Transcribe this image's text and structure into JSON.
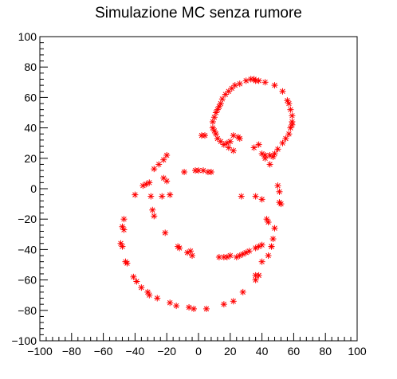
{
  "chart_data": {
    "type": "scatter",
    "title": "Simulazione MC senza rumore",
    "xlabel": "",
    "ylabel": "",
    "xlim": [
      -100,
      100
    ],
    "ylim": [
      -100,
      100
    ],
    "xticks": [
      -100,
      -80,
      -60,
      -40,
      -20,
      0,
      20,
      40,
      60,
      80,
      100
    ],
    "yticks": [
      -100,
      -80,
      -60,
      -40,
      -20,
      0,
      20,
      40,
      60,
      80,
      100
    ],
    "grid": false,
    "marker": "asterisk",
    "marker_color": "#ff0000",
    "series": [
      {
        "points": [
          [
            33,
            72
          ],
          [
            35,
            72
          ],
          [
            38,
            71
          ],
          [
            42,
            70
          ],
          [
            36,
            71
          ],
          [
            30,
            71
          ],
          [
            26,
            69
          ],
          [
            23,
            68
          ],
          [
            21,
            66
          ],
          [
            19,
            64
          ],
          [
            17,
            62
          ],
          [
            15,
            59
          ],
          [
            14,
            56
          ],
          [
            13,
            54
          ],
          [
            12,
            52
          ],
          [
            11,
            50
          ],
          [
            10,
            47
          ],
          [
            9,
            44
          ],
          [
            9,
            40
          ],
          [
            10,
            38
          ],
          [
            11,
            36
          ],
          [
            12,
            33
          ],
          [
            14,
            31
          ],
          [
            16,
            29
          ],
          [
            19,
            27
          ],
          [
            22,
            25
          ],
          [
            48,
            68
          ],
          [
            53,
            64
          ],
          [
            56,
            58
          ],
          [
            57,
            56
          ],
          [
            58,
            52
          ],
          [
            59,
            48
          ],
          [
            59,
            44
          ],
          [
            59,
            42
          ],
          [
            58,
            40
          ],
          [
            57,
            36
          ],
          [
            55,
            33
          ],
          [
            53,
            30
          ],
          [
            50,
            26
          ],
          [
            48,
            23
          ],
          [
            45,
            22
          ],
          [
            42,
            22
          ],
          [
            40,
            23
          ],
          [
            42,
            20
          ],
          [
            47,
            21
          ],
          [
            38,
            29
          ],
          [
            35,
            27
          ],
          [
            25,
            34
          ],
          [
            26,
            33
          ],
          [
            22,
            35
          ],
          [
            20,
            31
          ],
          [
            18,
            30
          ],
          [
            45,
            16
          ],
          [
            2,
            35
          ],
          [
            4,
            35
          ],
          [
            -2,
            12
          ],
          [
            0,
            12
          ],
          [
            3,
            12
          ],
          [
            6,
            11
          ],
          [
            8,
            11
          ],
          [
            -9,
            11
          ],
          [
            -20,
            22
          ],
          [
            -22,
            19
          ],
          [
            -25,
            16
          ],
          [
            -28,
            13
          ],
          [
            -33,
            3
          ],
          [
            -35,
            2
          ],
          [
            -31,
            4
          ],
          [
            -22,
            7
          ],
          [
            -20,
            5
          ],
          [
            -40,
            -4
          ],
          [
            -47,
            -20
          ],
          [
            -48,
            -25
          ],
          [
            -47,
            -27
          ],
          [
            -49,
            -36
          ],
          [
            -48,
            -38
          ],
          [
            -46,
            -48
          ],
          [
            -45,
            -49
          ],
          [
            -41,
            -58
          ],
          [
            -39,
            -61
          ],
          [
            -36,
            -65
          ],
          [
            -32,
            -68
          ],
          [
            -31,
            -70
          ],
          [
            -26,
            -72
          ],
          [
            -18,
            -75
          ],
          [
            -14,
            -77
          ],
          [
            -6,
            -78
          ],
          [
            -3,
            -79
          ],
          [
            5,
            -79
          ],
          [
            16,
            -76
          ],
          [
            22,
            -74
          ],
          [
            28,
            -68
          ],
          [
            36,
            -60
          ],
          [
            38,
            -57
          ],
          [
            36,
            -57
          ],
          [
            40,
            -48
          ],
          [
            44,
            -44
          ],
          [
            46,
            -38
          ],
          [
            47,
            -33
          ],
          [
            48,
            -26
          ],
          [
            43,
            -20
          ],
          [
            44,
            -22
          ],
          [
            51,
            -2
          ],
          [
            50,
            2
          ],
          [
            51,
            -9
          ],
          [
            52,
            -10
          ],
          [
            24,
            -45
          ],
          [
            26,
            -44
          ],
          [
            28,
            -43
          ],
          [
            30,
            -42
          ],
          [
            32,
            -41
          ],
          [
            36,
            -39
          ],
          [
            38,
            -38
          ],
          [
            40,
            -37
          ],
          [
            46,
            -38
          ],
          [
            13,
            -45
          ],
          [
            16,
            -45
          ],
          [
            18,
            -45
          ],
          [
            20,
            -44
          ],
          [
            -5,
            -41
          ],
          [
            -7,
            -42
          ],
          [
            -4,
            -44
          ],
          [
            -12,
            -39
          ],
          [
            -13,
            -38
          ],
          [
            -21,
            -29
          ],
          [
            -28,
            -18
          ],
          [
            -29,
            -14
          ],
          [
            -30,
            -5
          ],
          [
            -23,
            -5
          ],
          [
            -18,
            -4
          ],
          [
            27,
            -5
          ],
          [
            36,
            -5
          ],
          [
            40,
            -7
          ]
        ]
      }
    ]
  }
}
